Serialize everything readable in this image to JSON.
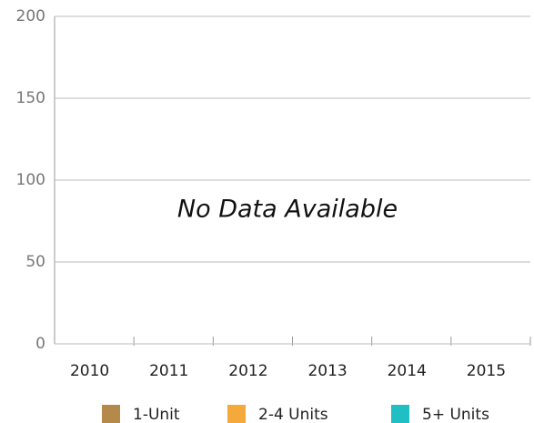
{
  "chart_data": {
    "type": "bar",
    "categories": [
      "2010",
      "2011",
      "2012",
      "2013",
      "2014",
      "2015"
    ],
    "series": [
      {
        "name": "1-Unit",
        "color": "#b5894a",
        "values": [
          null,
          null,
          null,
          null,
          null,
          null
        ]
      },
      {
        "name": "2-4 Units",
        "color": "#f6a93b",
        "values": [
          null,
          null,
          null,
          null,
          null,
          null
        ]
      },
      {
        "name": "5+ Units",
        "color": "#1fbfc4",
        "values": [
          null,
          null,
          null,
          null,
          null,
          null
        ]
      }
    ],
    "annotation": "No Data Available",
    "ylim": [
      0,
      200
    ],
    "yticks": [
      0,
      50,
      100,
      150,
      200
    ],
    "grid": true
  }
}
